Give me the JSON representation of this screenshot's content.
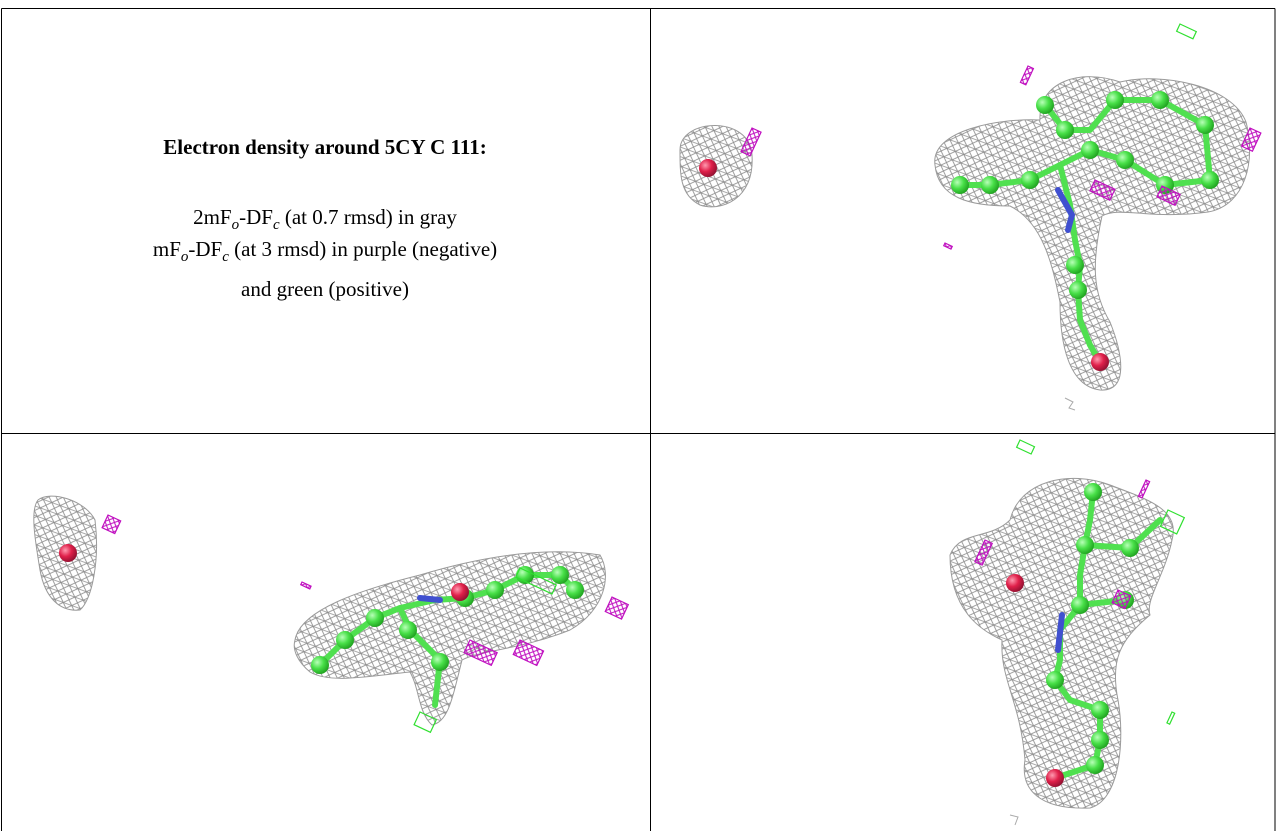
{
  "caption": {
    "title": "Electron density around 5CY C 111:",
    "lines": [
      [
        "2mF",
        "o",
        "-DF",
        "c",
        " (at 0.7 rmsd) in gray"
      ],
      [
        "mF",
        "o",
        "-DF",
        "c",
        " (at 3 rmsd) in purple (negative)"
      ],
      [
        "and green (positive)"
      ]
    ]
  }
}
